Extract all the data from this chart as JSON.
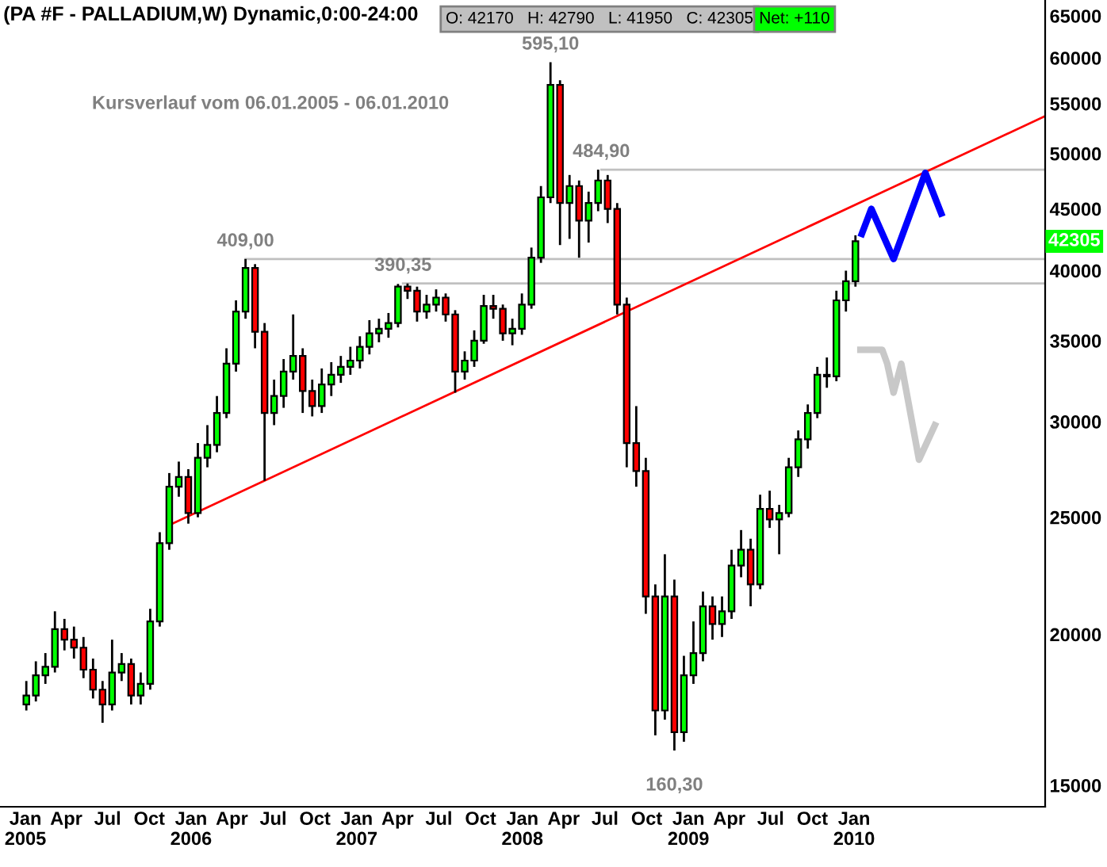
{
  "chart_data": {
    "type": "candlestick",
    "title": "(PA #F - PALLADIUM,W) Dynamic,0:00-24:00",
    "subtitle": "Kursverlauf vom 06.01.2005 - 06.01.2010",
    "x": [
      "2005-01-03",
      "2005-01-24",
      "2005-02-14",
      "2005-03-07",
      "2005-03-28",
      "2005-04-18",
      "2005-05-09",
      "2005-05-30",
      "2005-06-20",
      "2005-07-11",
      "2005-08-01",
      "2005-08-22",
      "2005-09-12",
      "2005-10-03",
      "2005-10-24",
      "2005-11-14",
      "2005-12-05",
      "2005-12-26",
      "2006-01-16",
      "2006-02-06",
      "2006-02-27",
      "2006-03-20",
      "2006-04-10",
      "2006-05-01",
      "2006-05-22",
      "2006-06-12",
      "2006-07-03",
      "2006-07-24",
      "2006-08-14",
      "2006-09-04",
      "2006-09-25",
      "2006-10-16",
      "2006-11-06",
      "2006-11-27",
      "2006-12-18",
      "2007-01-08",
      "2007-01-29",
      "2007-02-19",
      "2007-03-12",
      "2007-04-02",
      "2007-04-23",
      "2007-05-14",
      "2007-06-04",
      "2007-06-25",
      "2007-07-16",
      "2007-08-06",
      "2007-08-27",
      "2007-09-17",
      "2007-10-08",
      "2007-10-29",
      "2007-11-19",
      "2007-12-10",
      "2007-12-31",
      "2008-01-21",
      "2008-02-11",
      "2008-03-03",
      "2008-03-24",
      "2008-04-14",
      "2008-05-05",
      "2008-05-26",
      "2008-06-16",
      "2008-07-07",
      "2008-07-28",
      "2008-08-18",
      "2008-09-08",
      "2008-09-29",
      "2008-10-20",
      "2008-11-10",
      "2008-12-01",
      "2008-12-22",
      "2009-01-12",
      "2009-02-02",
      "2009-02-23",
      "2009-03-16",
      "2009-04-06",
      "2009-04-27",
      "2009-05-18",
      "2009-06-08",
      "2009-06-29",
      "2009-07-20",
      "2009-08-10",
      "2009-08-31",
      "2009-09-21",
      "2009-10-12",
      "2009-11-02",
      "2009-11-23",
      "2009-12-14",
      "2010-01-04"
    ],
    "ohlc": [
      [
        17500,
        18300,
        17300,
        17800
      ],
      [
        17800,
        19000,
        17600,
        18500
      ],
      [
        18500,
        19300,
        18200,
        18800
      ],
      [
        18800,
        20900,
        18600,
        20200
      ],
      [
        20200,
        20600,
        19400,
        19800
      ],
      [
        19800,
        20300,
        19100,
        19500
      ],
      [
        19500,
        19900,
        18400,
        18700
      ],
      [
        18700,
        19100,
        17700,
        18000
      ],
      [
        18000,
        18300,
        16900,
        17500
      ],
      [
        17500,
        19800,
        17300,
        18600
      ],
      [
        18600,
        19300,
        18300,
        18900
      ],
      [
        18900,
        19100,
        17500,
        17800
      ],
      [
        17800,
        18600,
        17500,
        18200
      ],
      [
        18200,
        21000,
        18000,
        20500
      ],
      [
        20500,
        24300,
        20300,
        23800
      ],
      [
        23800,
        27200,
        23500,
        26500
      ],
      [
        26500,
        27800,
        26000,
        27000
      ],
      [
        27000,
        27400,
        24700,
        25200
      ],
      [
        25200,
        28800,
        25000,
        28000
      ],
      [
        28000,
        29800,
        27500,
        28700
      ],
      [
        28700,
        31500,
        28300,
        30500
      ],
      [
        30500,
        34500,
        30200,
        33500
      ],
      [
        33500,
        37800,
        33000,
        37000
      ],
      [
        37000,
        40900,
        36500,
        40200
      ],
      [
        40200,
        40500,
        34500,
        35600
      ],
      [
        35600,
        36200,
        26800,
        30500
      ],
      [
        30500,
        32500,
        29800,
        31500
      ],
      [
        31500,
        33800,
        30800,
        33000
      ],
      [
        33000,
        36800,
        32500,
        34000
      ],
      [
        34000,
        34500,
        30500,
        31800
      ],
      [
        31800,
        32500,
        30300,
        30900
      ],
      [
        30900,
        33200,
        30500,
        32200
      ],
      [
        32200,
        33600,
        31500,
        32800
      ],
      [
        32800,
        34000,
        32300,
        33300
      ],
      [
        33300,
        34600,
        32800,
        33700
      ],
      [
        33700,
        35300,
        33200,
        34600
      ],
      [
        34600,
        36400,
        34100,
        35500
      ],
      [
        35500,
        36500,
        34900,
        35800
      ],
      [
        35800,
        36900,
        35200,
        36200
      ],
      [
        36200,
        39000,
        35900,
        38800
      ],
      [
        38800,
        39035,
        37900,
        38500
      ],
      [
        38500,
        38800,
        36300,
        37000
      ],
      [
        37000,
        38200,
        36500,
        37500
      ],
      [
        37500,
        38600,
        37000,
        38000
      ],
      [
        38000,
        38300,
        36300,
        36800
      ],
      [
        36800,
        37100,
        31700,
        33000
      ],
      [
        33000,
        34300,
        32500,
        33700
      ],
      [
        33700,
        35700,
        33300,
        35000
      ],
      [
        35000,
        38200,
        34800,
        37400
      ],
      [
        37400,
        38200,
        36500,
        37200
      ],
      [
        37200,
        37500,
        35000,
        35500
      ],
      [
        35500,
        36500,
        34700,
        35800
      ],
      [
        35800,
        38300,
        35400,
        37500
      ],
      [
        37500,
        41800,
        37200,
        41000
      ],
      [
        41000,
        47000,
        40600,
        46000
      ],
      [
        46000,
        59510,
        45500,
        57000
      ],
      [
        57000,
        57500,
        42000,
        45500
      ],
      [
        45500,
        48000,
        42500,
        47000
      ],
      [
        47000,
        47500,
        41000,
        44000
      ],
      [
        44000,
        46500,
        42200,
        45500
      ],
      [
        45500,
        48490,
        44800,
        47500
      ],
      [
        47500,
        48000,
        43800,
        45000
      ],
      [
        45000,
        45500,
        36800,
        37500
      ],
      [
        37500,
        38000,
        27500,
        28800
      ],
      [
        28800,
        30900,
        26500,
        27300
      ],
      [
        27300,
        28000,
        20800,
        21500
      ],
      [
        21500,
        22000,
        16500,
        17300
      ],
      [
        17300,
        23300,
        17000,
        21500
      ],
      [
        21500,
        22200,
        16030,
        16600
      ],
      [
        16600,
        19200,
        16300,
        18500
      ],
      [
        18500,
        20500,
        18200,
        19300
      ],
      [
        19300,
        21700,
        19000,
        21100
      ],
      [
        21100,
        21500,
        19800,
        20400
      ],
      [
        20400,
        21500,
        19900,
        20900
      ],
      [
        20900,
        23500,
        20600,
        22800
      ],
      [
        22800,
        24400,
        22300,
        23500
      ],
      [
        23500,
        24000,
        21100,
        22000
      ],
      [
        22000,
        26100,
        21800,
        25400
      ],
      [
        25400,
        26300,
        24500,
        24900
      ],
      [
        24900,
        25600,
        23300,
        25200
      ],
      [
        25200,
        28000,
        25000,
        27500
      ],
      [
        27500,
        29500,
        27000,
        29000
      ],
      [
        29000,
        31000,
        28500,
        30500
      ],
      [
        30500,
        33300,
        30200,
        32800
      ],
      [
        32800,
        33900,
        32000,
        32700
      ],
      [
        32700,
        38500,
        32400,
        37800
      ],
      [
        37800,
        40000,
        37000,
        39200
      ],
      [
        39200,
        42790,
        38800,
        42305
      ]
    ],
    "colors": [
      "#00ff00",
      "#00ff00",
      "#00ff00",
      "#00ff00",
      "#ff0000",
      "#ff0000",
      "#ff0000",
      "#ff0000",
      "#ff0000",
      "#00ff00",
      "#00ff00",
      "#ff0000",
      "#00ff00",
      "#00ff00",
      "#00ff00",
      "#00ff00",
      "#00ff00",
      "#ff0000",
      "#00ff00",
      "#00ff00",
      "#00ff00",
      "#00ff00",
      "#00ff00",
      "#00ff00",
      "#ff0000",
      "#ff0000",
      "#00ff00",
      "#00ff00",
      "#00ff00",
      "#ff0000",
      "#ff0000",
      "#00ff00",
      "#00ff00",
      "#00ff00",
      "#00ff00",
      "#00ff00",
      "#00ff00",
      "#00ff00",
      "#00ff00",
      "#00ff00",
      "#ff0000",
      "#ff0000",
      "#00ff00",
      "#00ff00",
      "#ff0000",
      "#ff0000",
      "#00ff00",
      "#00ff00",
      "#00ff00",
      "#ff0000",
      "#ff0000",
      "#00ff00",
      "#00ff00",
      "#00ff00",
      "#00ff00",
      "#00ff00",
      "#ff0000",
      "#00ff00",
      "#ff0000",
      "#00ff00",
      "#00ff00",
      "#ff0000",
      "#ff0000",
      "#ff0000",
      "#ff0000",
      "#ff0000",
      "#ff0000",
      "#00ff00",
      "#ff0000",
      "#00ff00",
      "#00ff00",
      "#00ff00",
      "#ff0000",
      "#00ff00",
      "#00ff00",
      "#00ff00",
      "#ff0000",
      "#00ff00",
      "#ff0000",
      "#00ff00",
      "#00ff00",
      "#00ff00",
      "#00ff00",
      "#00ff00",
      "#ff0000",
      "#00ff00",
      "#00ff00",
      "#00ff00"
    ],
    "series": [
      {
        "type": "line",
        "color": "#c0c0c0",
        "x": [
          "2006-05-01",
          "2011-02-26"
        ],
        "values": [
          40900,
          40900
        ]
      },
      {
        "type": "line",
        "color": "#c0c0c0",
        "x": [
          "2007-04-13",
          "2011-02-26"
        ],
        "values": [
          39035,
          39035
        ]
      },
      {
        "type": "line",
        "color": "#c0c0c0",
        "x": [
          "2008-06-23",
          "2011-02-26"
        ],
        "values": [
          48490,
          48490
        ]
      },
      {
        "type": "line",
        "color": "#ff0000",
        "x": [
          "2005-11-21",
          "2011-02-26"
        ],
        "values": [
          24700,
          53700
        ]
      },
      {
        "type": "line",
        "color": "#0000ff",
        "x": [
          "2010-01-18",
          "2010-02-08",
          "2010-03-29",
          "2010-06-07",
          "2010-07-12"
        ],
        "values": [
          42900,
          45000,
          40900,
          48200,
          44600
        ]
      },
      {
        "type": "line",
        "color": "#c8c8c8",
        "x": [
          "2010-01-15",
          "2010-03-04",
          "2010-03-15",
          "2010-03-29",
          "2010-04-15",
          "2010-05-24",
          "2010-06-28"
        ],
        "values": [
          34400,
          34400,
          33500,
          31700,
          33500,
          27900,
          29800
        ]
      }
    ],
    "annotations": [
      "O: 42170   H: 42790   L: 41950   C: 42305",
      "Net: +110",
      {
        "text": "409,00",
        "x": "2006-05-01",
        "y": 40900
      },
      {
        "text": "390,35",
        "x": "2007-04-13",
        "y": 39035
      },
      "595,10",
      "160,30",
      "42305",
      {
        "text": "484,90",
        "x": "2008-06-23",
        "y": 48490
      }
    ],
    "xlim": [
      "2004-11-06",
      "2011-02-26"
    ],
    "xticks": [
      {
        "value": "2005-01-01",
        "label": "Jan\n2005"
      },
      {
        "value": "2005-04-01",
        "label": "Apr"
      },
      {
        "value": "2005-07-01",
        "label": "Jul"
      },
      {
        "value": "2005-10-01",
        "label": "Oct"
      },
      {
        "value": "2006-01-01",
        "label": "Jan\n2006"
      },
      {
        "value": "2006-04-01",
        "label": "Apr"
      },
      {
        "value": "2006-07-01",
        "label": "Jul"
      },
      {
        "value": "2006-10-01",
        "label": "Oct"
      },
      {
        "value": "2007-01-01",
        "label": "Jan\n2007"
      },
      {
        "value": "2007-04-01",
        "label": "Apr"
      },
      {
        "value": "2007-07-01",
        "label": "Jul"
      },
      {
        "value": "2007-10-01",
        "label": "Oct"
      },
      {
        "value": "2008-01-01",
        "label": "Jan\n2008"
      },
      {
        "value": "2008-04-01",
        "label": "Apr"
      },
      {
        "value": "2008-07-01",
        "label": "Jul"
      },
      {
        "value": "2008-10-01",
        "label": "Oct"
      },
      {
        "value": "2009-01-01",
        "label": "Jan\n2009"
      },
      {
        "value": "2009-04-01",
        "label": "Apr"
      },
      {
        "value": "2009-07-01",
        "label": "Jul"
      },
      {
        "value": "2009-10-01",
        "label": "Oct"
      },
      {
        "value": "2010-01-01",
        "label": "Jan\n2010"
      }
    ],
    "ylim": [
      14400,
      67000
    ],
    "yticks": [
      15000,
      20000,
      25000,
      30000,
      35000,
      40000,
      45000,
      50000,
      55000,
      60000,
      65000
    ],
    "log": true,
    "grid": false,
    "legend": false
  }
}
